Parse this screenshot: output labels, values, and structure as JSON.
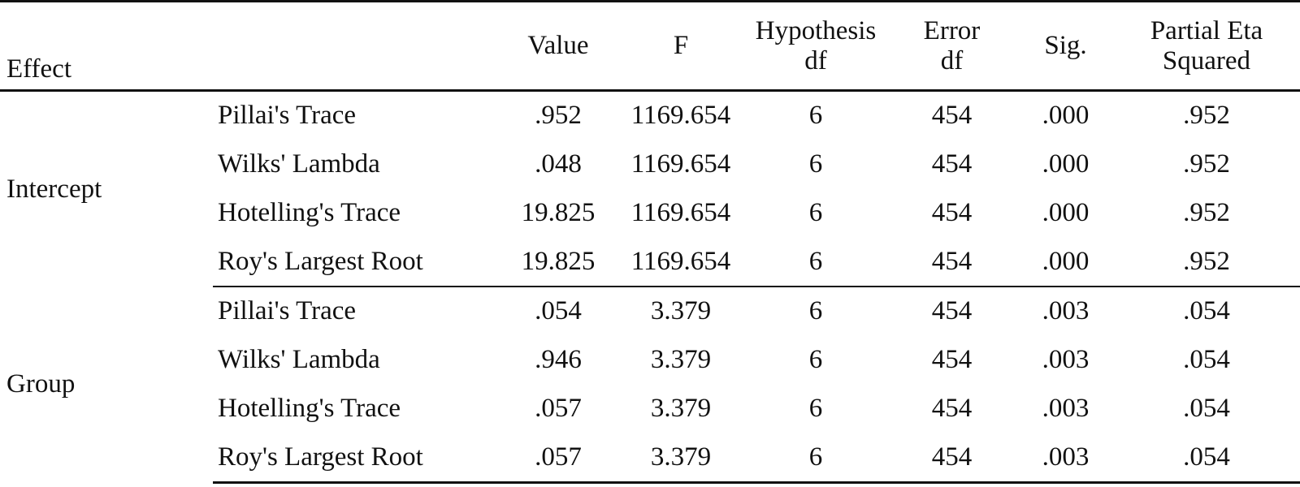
{
  "table": {
    "headers": {
      "effect": "Effect",
      "test": "",
      "value": "Value",
      "f": "F",
      "hypothesis_df": [
        "Hypothesis",
        "df"
      ],
      "error_df": [
        "Error",
        "df"
      ],
      "sig": "Sig.",
      "partial_eta": [
        "Partial Eta",
        "Squared"
      ]
    },
    "groups": [
      {
        "effect": "Intercept",
        "rows": [
          {
            "test": "Pillai's Trace",
            "value": ".952",
            "f": "1169.654",
            "hdf": "6",
            "edf": "454",
            "sig": ".000",
            "eta": ".952"
          },
          {
            "test": "Wilks' Lambda",
            "value": ".048",
            "f": "1169.654",
            "hdf": "6",
            "edf": "454",
            "sig": ".000",
            "eta": ".952"
          },
          {
            "test": "Hotelling's Trace",
            "value": "19.825",
            "f": "1169.654",
            "hdf": "6",
            "edf": "454",
            "sig": ".000",
            "eta": ".952"
          },
          {
            "test": "Roy's Largest Root",
            "value": "19.825",
            "f": "1169.654",
            "hdf": "6",
            "edf": "454",
            "sig": ".000",
            "eta": ".952"
          }
        ]
      },
      {
        "effect": "Group",
        "rows": [
          {
            "test": "Pillai's Trace",
            "value": ".054",
            "f": "3.379",
            "hdf": "6",
            "edf": "454",
            "sig": ".003",
            "eta": ".054"
          },
          {
            "test": "Wilks' Lambda",
            "value": ".946",
            "f": "3.379",
            "hdf": "6",
            "edf": "454",
            "sig": ".003",
            "eta": ".054"
          },
          {
            "test": "Hotelling's Trace",
            "value": ".057",
            "f": "3.379",
            "hdf": "6",
            "edf": "454",
            "sig": ".003",
            "eta": ".054"
          },
          {
            "test": "Roy's Largest Root",
            "value": ".057",
            "f": "3.379",
            "hdf": "6",
            "edf": "454",
            "sig": ".003",
            "eta": ".054"
          }
        ]
      }
    ]
  }
}
